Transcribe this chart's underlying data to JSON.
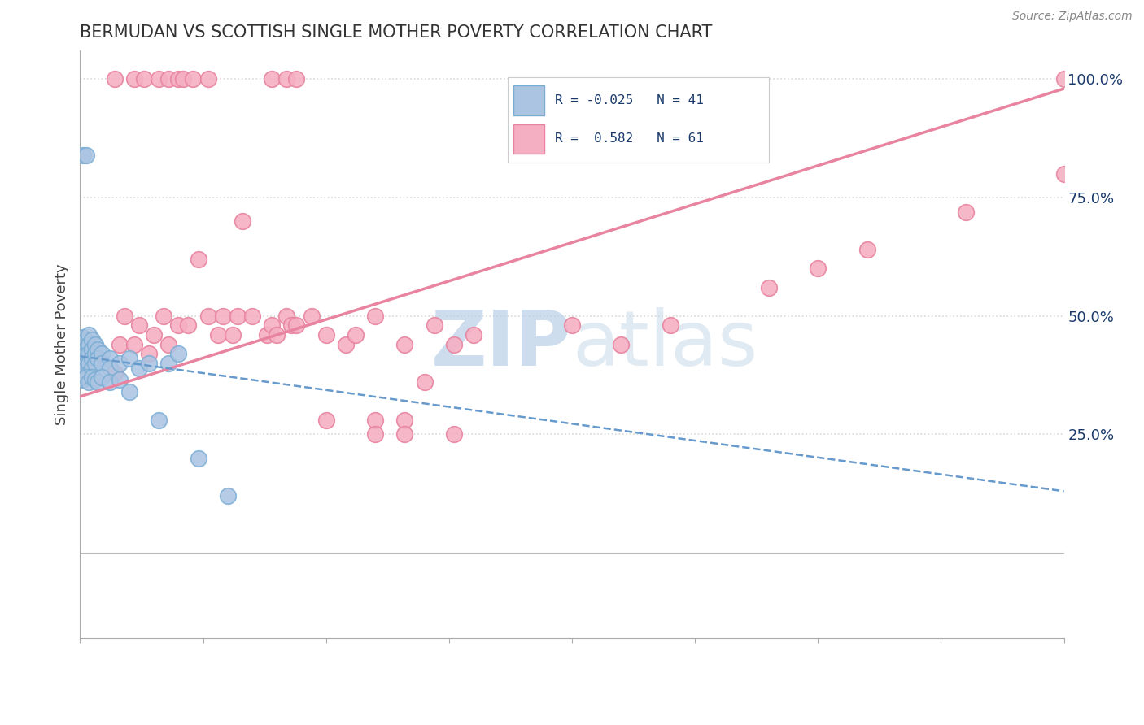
{
  "title": "BERMUDAN VS SCOTTISH SINGLE MOTHER POVERTY CORRELATION CHART",
  "source": "Source: ZipAtlas.com",
  "ylabel": "Single Mother Poverty",
  "x_min": 0.0,
  "x_max": 1.0,
  "y_min": -0.18,
  "y_max": 1.06,
  "right_yticks": [
    0.0,
    0.25,
    0.5,
    0.75,
    1.0
  ],
  "right_yticklabels": [
    "",
    "25.0%",
    "50.0%",
    "75.0%",
    "100.0%"
  ],
  "bermuda_color": "#aac4e2",
  "scottish_color": "#f5afc3",
  "bermuda_edge": "#7aadd4",
  "scottish_edge": "#e8849f",
  "bermuda_R": -0.025,
  "bermuda_N": 41,
  "scottish_R": 0.582,
  "scottish_N": 61,
  "legend_R_color": "#1a3a6b",
  "watermark_color": "#cde3f5",
  "background_color": "#ffffff",
  "grid_color": "#d8d8d8",
  "bermuda_trend_color": "#6699cc",
  "scottish_trend_color": "#e8849f",
  "bx": [
    0.003,
    0.003,
    0.003,
    0.003,
    0.003,
    0.003,
    0.003,
    0.003,
    0.003,
    0.006,
    0.006,
    0.006,
    0.006,
    0.006,
    0.006,
    0.009,
    0.009,
    0.009,
    0.009,
    0.009,
    0.012,
    0.012,
    0.012,
    0.012,
    0.015,
    0.015,
    0.015,
    0.018,
    0.018,
    0.022,
    0.022,
    0.03,
    0.03,
    0.04,
    0.05,
    0.06,
    0.07,
    0.09,
    0.1,
    0.12,
    0.15
  ],
  "by": [
    0.455,
    0.445,
    0.435,
    0.425,
    0.415,
    0.405,
    0.395,
    0.385,
    0.375,
    0.45,
    0.43,
    0.42,
    0.41,
    0.4,
    0.39,
    0.46,
    0.44,
    0.42,
    0.4,
    0.38,
    0.45,
    0.43,
    0.41,
    0.39,
    0.44,
    0.42,
    0.4,
    0.43,
    0.41,
    0.42,
    0.4,
    0.41,
    0.39,
    0.4,
    0.41,
    0.39,
    0.4,
    0.4,
    0.42,
    0.2,
    0.12
  ],
  "bx_high": [
    0.003,
    0.006
  ],
  "by_high": [
    0.84,
    0.84
  ],
  "bx_low": [
    0.003,
    0.006,
    0.009,
    0.012,
    0.015,
    0.018,
    0.022,
    0.03,
    0.04,
    0.05,
    0.08
  ],
  "by_low": [
    0.365,
    0.37,
    0.36,
    0.37,
    0.365,
    0.36,
    0.37,
    0.36,
    0.365,
    0.34,
    0.28
  ],
  "sx": [
    0.035,
    0.04,
    0.045,
    0.055,
    0.06,
    0.07,
    0.075,
    0.085,
    0.09,
    0.1,
    0.11,
    0.12,
    0.13,
    0.14,
    0.145,
    0.155,
    0.16,
    0.165,
    0.175,
    0.19,
    0.195,
    0.2,
    0.21,
    0.215,
    0.22,
    0.235,
    0.25,
    0.27,
    0.28,
    0.3,
    0.33,
    0.35,
    0.36,
    0.3,
    0.33,
    0.38,
    0.4,
    0.5,
    0.55,
    0.6,
    0.7,
    0.75,
    0.8,
    0.9,
    1.0
  ],
  "sy": [
    0.38,
    0.44,
    0.5,
    0.44,
    0.48,
    0.42,
    0.46,
    0.5,
    0.44,
    0.48,
    0.48,
    0.62,
    0.5,
    0.46,
    0.5,
    0.46,
    0.5,
    0.7,
    0.5,
    0.46,
    0.48,
    0.46,
    0.5,
    0.48,
    0.48,
    0.5,
    0.46,
    0.44,
    0.46,
    0.28,
    0.28,
    0.36,
    0.48,
    0.5,
    0.44,
    0.44,
    0.46,
    0.48,
    0.44,
    0.48,
    0.56,
    0.6,
    0.64,
    0.72,
    0.8
  ],
  "sx_low": [
    0.25,
    0.3,
    0.33,
    0.38
  ],
  "sy_low": [
    0.28,
    0.25,
    0.25,
    0.25
  ],
  "top_sx": [
    0.035,
    0.055,
    0.065,
    0.08,
    0.09,
    0.1,
    0.105,
    0.115,
    0.13,
    0.195,
    0.21,
    0.22,
    1.0
  ],
  "top_sy": [
    1.0,
    1.0,
    1.0,
    1.0,
    1.0,
    1.0,
    1.0,
    1.0,
    1.0,
    1.0,
    1.0,
    1.0,
    1.0
  ],
  "scottish_trend_x0": 0.0,
  "scottish_trend_y0": 0.33,
  "scottish_trend_x1": 1.0,
  "scottish_trend_y1": 0.98,
  "bermuda_trend_x0": 0.0,
  "bermuda_trend_y0": 0.415,
  "bermuda_trend_x1": 1.0,
  "bermuda_trend_y1": 0.13
}
